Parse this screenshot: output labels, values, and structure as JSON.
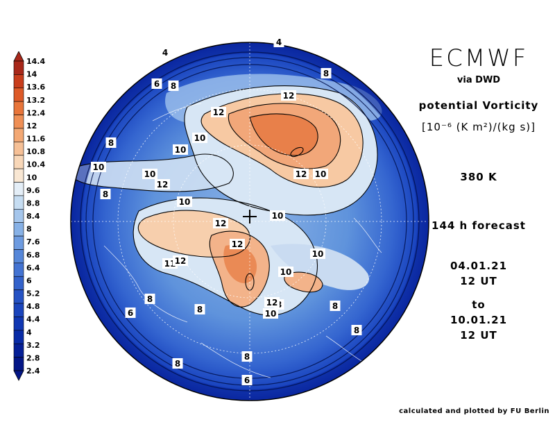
{
  "header": {
    "title": "ECMWF",
    "via": "via DWD",
    "variable": "potential Vorticity",
    "units": "[10⁻⁶ (K m²)/(kg s)]",
    "level": "380 K",
    "forecast": "144 h forecast",
    "start_date": "04.01.21",
    "start_time": "12 UT",
    "to": "to",
    "end_date": "10.01.21",
    "end_time": "12 UT"
  },
  "footer": {
    "credit": "calculated and plotted by FU Berlin"
  },
  "colorbar": {
    "labels": [
      "14.4",
      "14",
      "13.6",
      "13.2",
      "12.4",
      "12",
      "11.6",
      "10.8",
      "10.4",
      "10",
      "9.6",
      "8.8",
      "8.4",
      "8",
      "7.6",
      "6.8",
      "6.4",
      "6",
      "5.2",
      "4.8",
      "4.4",
      "4",
      "3.2",
      "2.8",
      "2.4"
    ],
    "colors": [
      "#a8281a",
      "#c83d1c",
      "#dd5a28",
      "#e8753a",
      "#ef8f55",
      "#f3a874",
      "#f6c096",
      "#f8d7b8",
      "#f9e7d3",
      "#e4eef7",
      "#c6ddf2",
      "#a5c6ec",
      "#87b1e6",
      "#6d9be0",
      "#5687d9",
      "#4373d2",
      "#3362cb",
      "#2552c4",
      "#1a44bc",
      "#1037b3",
      "#082ba7",
      "#051f97",
      "#031687"
    ]
  },
  "map": {
    "contour_labels": [
      {
        "text": "4"
      },
      {
        "text": "4"
      },
      {
        "text": "8"
      },
      {
        "text": "6"
      },
      {
        "text": "8"
      },
      {
        "text": "12"
      },
      {
        "text": "12"
      },
      {
        "text": "10"
      },
      {
        "text": "8"
      },
      {
        "text": "10"
      },
      {
        "text": "10"
      },
      {
        "text": "12"
      },
      {
        "text": "10"
      },
      {
        "text": "12"
      },
      {
        "text": "10"
      },
      {
        "text": "8"
      },
      {
        "text": "10"
      },
      {
        "text": "12"
      },
      {
        "text": "10"
      },
      {
        "text": "12"
      },
      {
        "text": "10"
      },
      {
        "text": "11"
      },
      {
        "text": "12"
      },
      {
        "text": "10"
      },
      {
        "text": "8"
      },
      {
        "text": "8"
      },
      {
        "text": "12"
      },
      {
        "text": "10"
      },
      {
        "text": "8"
      },
      {
        "text": "6"
      },
      {
        "text": "8"
      },
      {
        "text": "8"
      },
      {
        "text": "8"
      },
      {
        "text": "8"
      },
      {
        "text": "6"
      }
    ]
  }
}
